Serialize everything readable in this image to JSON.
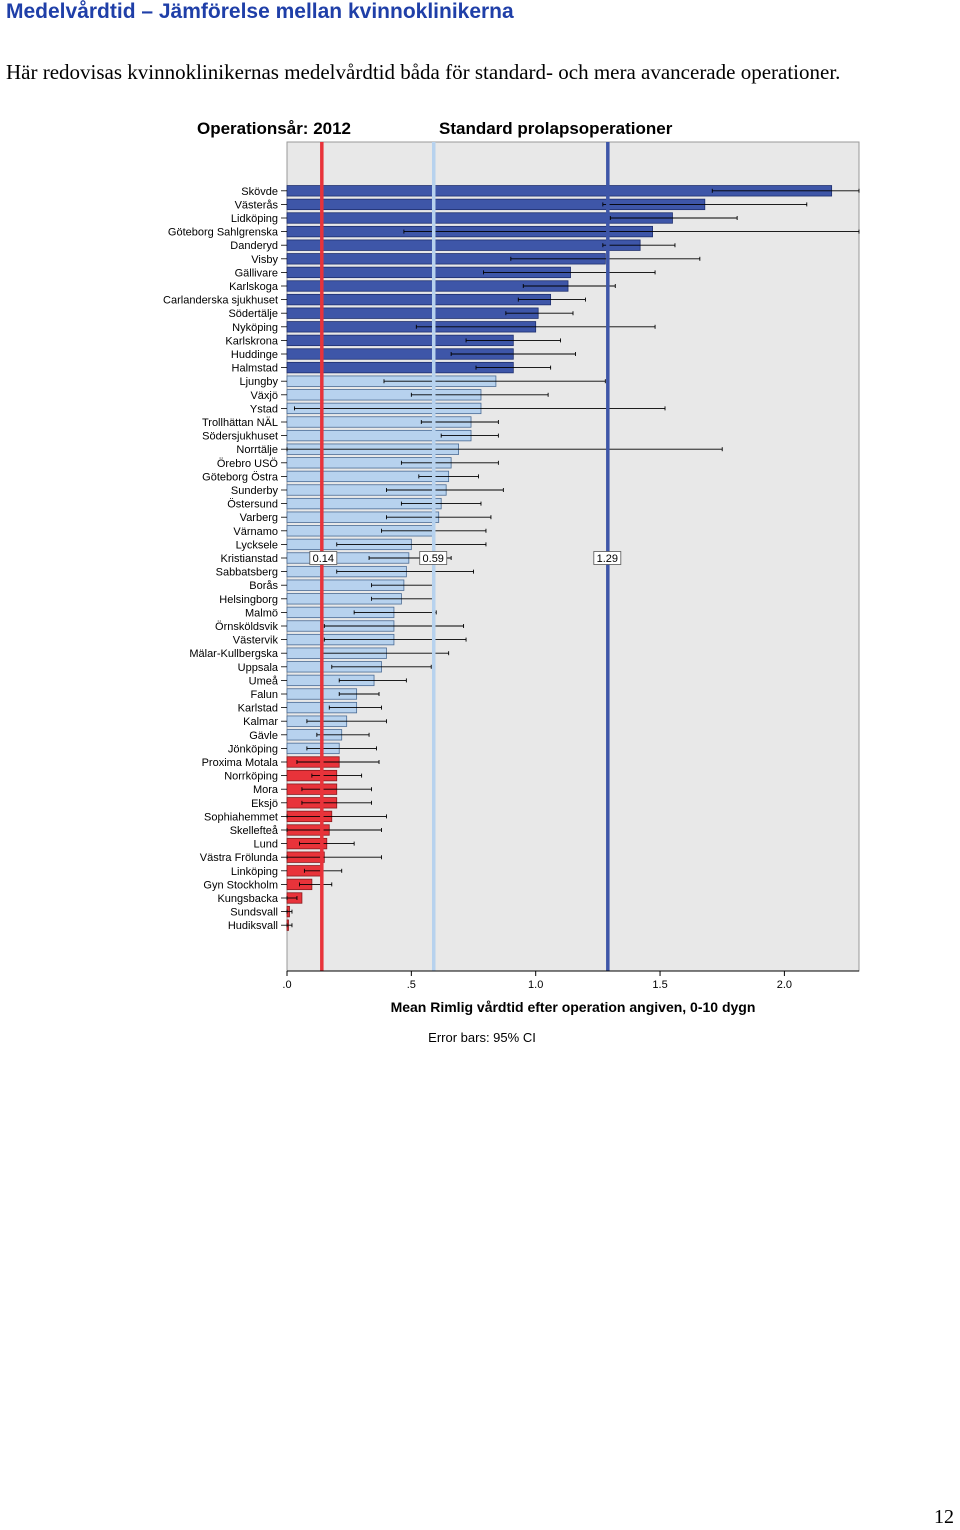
{
  "page": {
    "heading": "Medelvårdtid – Jämförelse mellan kvinnoklinikerna",
    "intro": "Här redovisas kvinnoklinikernas medelvårdtid båda för standard- och mera avancerade operationer.",
    "page_number": "12"
  },
  "colors": {
    "dark_blue": "#3e56a8",
    "light_blue": "#b7d2ee",
    "red": "#e8333a",
    "heading": "#1f3fa8",
    "plot_bg": "#e8e8e8"
  },
  "chart_data": {
    "type": "bar",
    "orientation": "horizontal",
    "header_left": "Operationsår: 2012",
    "header_right": "Standard prolapsoperationer",
    "xlabel": "Mean Rimlig vårdtid efter operation angiven, 0-10 dygn",
    "note": "Error bars: 95% CI",
    "xlim": [
      0,
      2.3
    ],
    "xticks": [
      ".0",
      ".5",
      "1.0",
      "1.5",
      "2.0"
    ],
    "xtick_values": [
      0,
      0.5,
      1.0,
      1.5,
      2.0
    ],
    "reference_lines": [
      {
        "value": 0.14,
        "label": "0.14",
        "color": "#e8333a"
      },
      {
        "value": 0.59,
        "label": "0.59",
        "color": "#b7d2ee"
      },
      {
        "value": 1.29,
        "label": "1.29",
        "color": "#3e56a8"
      }
    ],
    "categories": [
      "Skövde",
      "Västerås",
      "Lidköping",
      "Göteborg Sahlgrenska",
      "Danderyd",
      "Visby",
      "Gällivare",
      "Karlskoga",
      "Carlanderska sjukhuset",
      "Södertälje",
      "Nyköping",
      "Karlskrona",
      "Huddinge",
      "Halmstad",
      "Ljungby",
      "Växjö",
      "Ystad",
      "Trollhättan NÄL",
      "Södersjukhuset",
      "Norrtälje",
      "Örebro USÖ",
      "Göteborg Östra",
      "Sunderby",
      "Östersund",
      "Varberg",
      "Värnamo",
      "Lycksele",
      "Kristianstad",
      "Sabbatsberg",
      "Borås",
      "Helsingborg",
      "Malmö",
      "Örnsköldsvik",
      "Västervik",
      "Mälar-Kullbergska",
      "Uppsala",
      "Umeå",
      "Falun",
      "Karlstad",
      "Kalmar",
      "Gävle",
      "Jönköping",
      "Proxima Motala",
      "Norrköping",
      "Mora",
      "Eksjö",
      "Sophiahemmet",
      "Skellefteå",
      "Lund",
      "Västra Frölunda",
      "Linköping",
      "Gyn Stockholm",
      "Kungsbacka",
      "Sundsvall",
      "Hudiksvall"
    ],
    "values": [
      2.19,
      1.68,
      1.55,
      1.47,
      1.42,
      1.28,
      1.14,
      1.13,
      1.06,
      1.01,
      1.0,
      0.91,
      0.91,
      0.91,
      0.84,
      0.78,
      0.78,
      0.74,
      0.74,
      0.69,
      0.66,
      0.65,
      0.64,
      0.62,
      0.61,
      0.59,
      0.5,
      0.49,
      0.48,
      0.47,
      0.46,
      0.43,
      0.43,
      0.43,
      0.4,
      0.38,
      0.35,
      0.28,
      0.28,
      0.24,
      0.22,
      0.21,
      0.21,
      0.2,
      0.2,
      0.2,
      0.18,
      0.17,
      0.16,
      0.15,
      0.14,
      0.1,
      0.06,
      0.01,
      0.0
    ],
    "ci_low": [
      1.71,
      1.27,
      1.3,
      0.47,
      1.27,
      0.9,
      0.79,
      0.95,
      0.93,
      0.88,
      0.52,
      0.72,
      0.66,
      0.76,
      0.39,
      0.5,
      0.03,
      0.54,
      0.62,
      0.0,
      0.46,
      0.53,
      0.4,
      0.46,
      0.4,
      0.38,
      0.2,
      0.33,
      0.2,
      0.34,
      0.34,
      0.27,
      0.15,
      0.15,
      0.14,
      0.18,
      0.21,
      0.21,
      0.17,
      0.08,
      0.12,
      0.08,
      0.04,
      0.1,
      0.06,
      0.06,
      0.0,
      0.0,
      0.05,
      0.0,
      0.07,
      0.05,
      0.0,
      0.0,
      0.0
    ],
    "ci_high": [
      2.3,
      2.09,
      1.81,
      2.3,
      1.56,
      1.66,
      1.48,
      1.32,
      1.2,
      1.15,
      1.48,
      1.1,
      1.16,
      1.06,
      1.28,
      1.05,
      1.52,
      0.85,
      0.85,
      1.75,
      0.85,
      0.77,
      0.87,
      0.78,
      0.82,
      0.8,
      0.8,
      0.66,
      0.75,
      0.59,
      0.59,
      0.6,
      0.71,
      0.72,
      0.65,
      0.58,
      0.48,
      0.37,
      0.38,
      0.4,
      0.33,
      0.36,
      0.37,
      0.3,
      0.34,
      0.34,
      0.4,
      0.38,
      0.27,
      0.38,
      0.22,
      0.18,
      0.04,
      0.02,
      0.02
    ],
    "groups": [
      "dark",
      "dark",
      "dark",
      "dark",
      "dark",
      "dark",
      "dark",
      "dark",
      "dark",
      "dark",
      "dark",
      "dark",
      "dark",
      "dark",
      "light",
      "light",
      "light",
      "light",
      "light",
      "light",
      "light",
      "light",
      "light",
      "light",
      "light",
      "light",
      "light",
      "light",
      "light",
      "light",
      "light",
      "light",
      "light",
      "light",
      "light",
      "light",
      "light",
      "light",
      "light",
      "light",
      "light",
      "light",
      "red",
      "red",
      "red",
      "red",
      "red",
      "red",
      "red",
      "red",
      "red",
      "red",
      "red",
      "red",
      "red"
    ],
    "grid": false
  }
}
